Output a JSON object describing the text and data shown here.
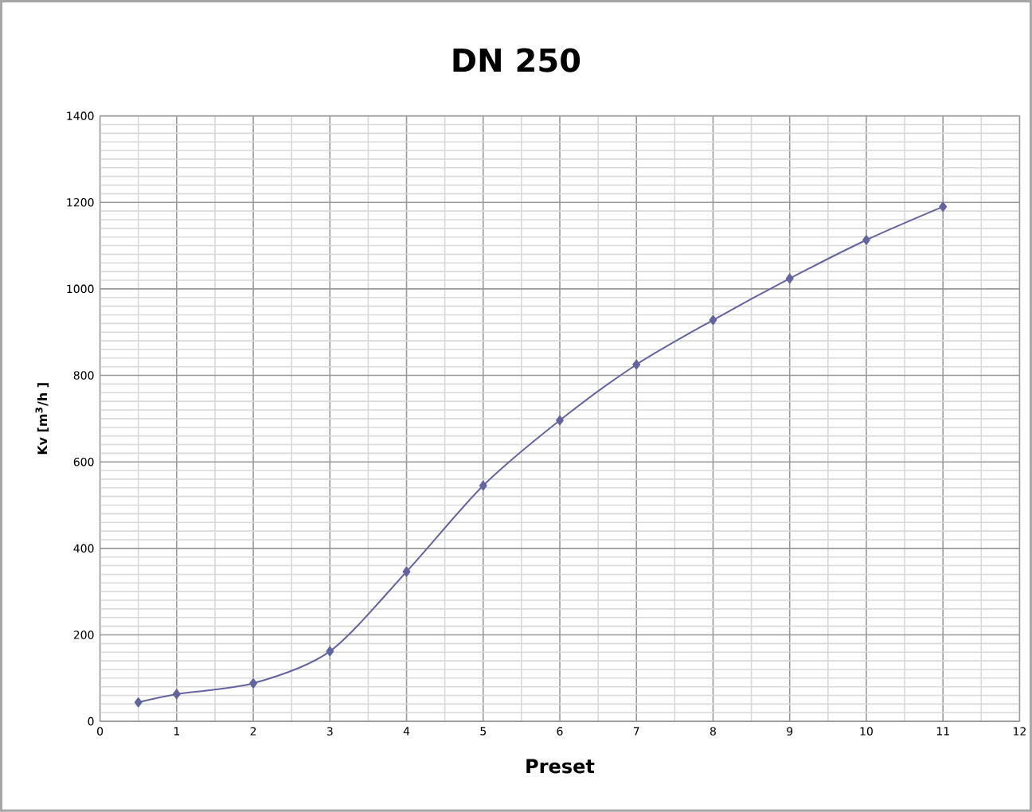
{
  "chart_data": {
    "type": "line",
    "title": "DN 250",
    "xlabel": "Preset",
    "ylabel": "Kv [m$^{3}$/h ]",
    "x": [
      0.5,
      1,
      2,
      3,
      4,
      5,
      6,
      7,
      8,
      9,
      10,
      11
    ],
    "series": [
      {
        "color": "#6464a0",
        "values": [
          44,
          63,
          88,
          162,
          346,
          545,
          696,
          825,
          928,
          1024,
          1113,
          1190
        ]
      }
    ],
    "xlim": [
      0,
      12
    ],
    "xticks": [
      0,
      1,
      2,
      3,
      4,
      5,
      6,
      7,
      8,
      9,
      10,
      11,
      12
    ],
    "ylim": [
      0,
      1400
    ],
    "yticks": [
      0,
      200,
      400,
      600,
      800,
      1000,
      1200,
      1400
    ],
    "grid": true,
    "marker": "diamond",
    "line_style": "solid"
  }
}
